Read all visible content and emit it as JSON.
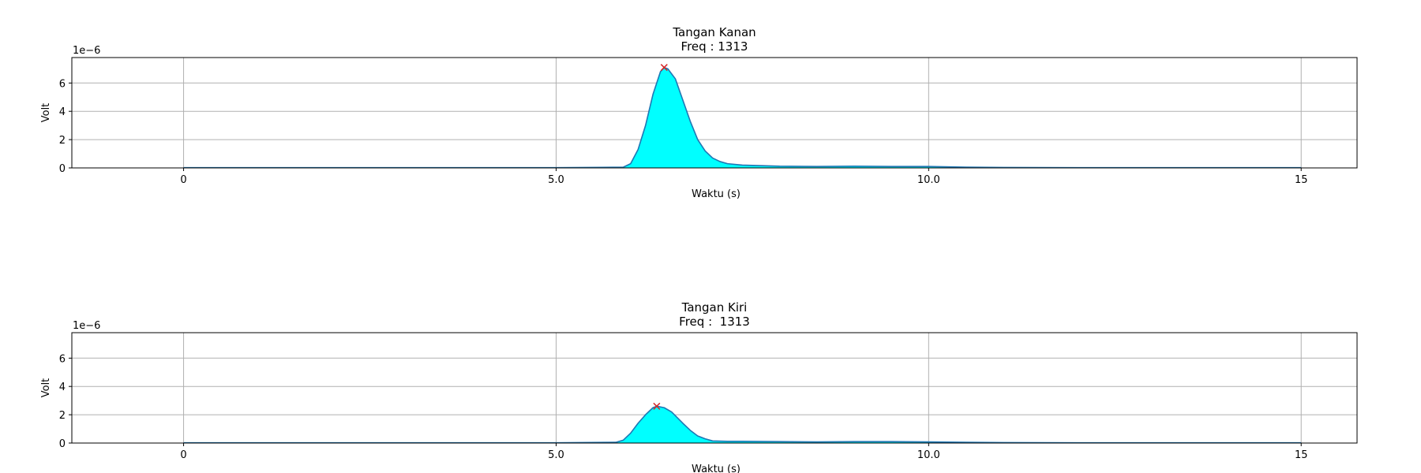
{
  "chart_data": [
    {
      "type": "area",
      "title": "Tangan Kanan",
      "subtitle": "Freq : 1313",
      "xlabel": "Waktu (s)",
      "ylabel": "Volt",
      "y_scale_label": "1e−6",
      "xlim": [
        -1.5,
        15.75
      ],
      "ylim": [
        0,
        7.8
      ],
      "xticks": [
        0,
        5,
        10,
        15
      ],
      "xtick_labels": [
        "0",
        "5.0",
        "10.0",
        "15"
      ],
      "yticks": [
        0,
        2,
        4,
        6
      ],
      "ytick_labels": [
        "0",
        "2",
        "4",
        "6"
      ],
      "grid": true,
      "fill_color": "#00ffff",
      "line_color": "#1f77b4",
      "peak_marker_color": "#d62728",
      "peak": {
        "x": 6.45,
        "y": 7.1
      },
      "series": [
        {
          "x": [
            0,
            1,
            2,
            3,
            4,
            5,
            5.9,
            6.0,
            6.1,
            6.2,
            6.3,
            6.4,
            6.45,
            6.5,
            6.6,
            6.7,
            6.8,
            6.9,
            7.0,
            7.1,
            7.2,
            7.3,
            7.5,
            8.0,
            8.5,
            9.0,
            9.5,
            10.0,
            10.5,
            11.0,
            12.0,
            13.0,
            14.0,
            15.0
          ],
          "y": [
            0.02,
            0.02,
            0.02,
            0.02,
            0.02,
            0.02,
            0.05,
            0.3,
            1.3,
            3.0,
            5.2,
            6.8,
            7.1,
            7.0,
            6.3,
            4.8,
            3.3,
            2.0,
            1.2,
            0.7,
            0.45,
            0.3,
            0.2,
            0.12,
            0.1,
            0.12,
            0.1,
            0.1,
            0.05,
            0.03,
            0.02,
            0.02,
            0.02,
            0.02
          ]
        }
      ]
    },
    {
      "type": "area",
      "title": "Tangan Kiri",
      "subtitle": "Freq :  1313",
      "xlabel": "Waktu (s)",
      "ylabel": "Volt",
      "y_scale_label": "1e−6",
      "xlim": [
        -1.5,
        15.75
      ],
      "ylim": [
        0,
        7.8
      ],
      "xticks": [
        0,
        5,
        10,
        15
      ],
      "xtick_labels": [
        "0",
        "5.0",
        "10.0",
        "15"
      ],
      "yticks": [
        0,
        2,
        4,
        6
      ],
      "ytick_labels": [
        "0",
        "2",
        "4",
        "6"
      ],
      "grid": true,
      "fill_color": "#00ffff",
      "line_color": "#1f77b4",
      "peak_marker_color": "#d62728",
      "peak": {
        "x": 6.35,
        "y": 2.6
      },
      "series": [
        {
          "x": [
            0,
            1,
            2,
            3,
            4,
            5,
            5.8,
            5.9,
            6.0,
            6.1,
            6.2,
            6.3,
            6.35,
            6.45,
            6.55,
            6.7,
            6.8,
            6.9,
            7.0,
            7.1,
            7.3,
            7.5,
            8.0,
            8.5,
            9.0,
            9.5,
            10.0,
            10.5,
            11.0,
            12.0,
            13.0,
            14.0,
            15.0
          ],
          "y": [
            0.02,
            0.02,
            0.02,
            0.02,
            0.02,
            0.02,
            0.05,
            0.2,
            0.7,
            1.4,
            2.0,
            2.5,
            2.6,
            2.5,
            2.2,
            1.4,
            0.9,
            0.5,
            0.3,
            0.15,
            0.12,
            0.12,
            0.1,
            0.08,
            0.1,
            0.1,
            0.08,
            0.05,
            0.03,
            0.02,
            0.02,
            0.02,
            0.02
          ]
        }
      ]
    }
  ]
}
